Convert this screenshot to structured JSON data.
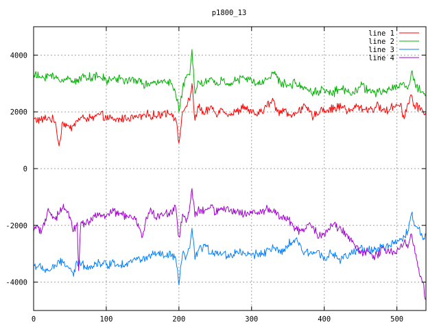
{
  "chart_data": {
    "type": "line",
    "title": "p1800_13",
    "xlabel": "",
    "ylabel": "",
    "xlim": [
      0,
      540
    ],
    "ylim": [
      -5000,
      5000
    ],
    "x_ticks": [
      0,
      100,
      200,
      300,
      400,
      500
    ],
    "y_ticks": [
      -4000,
      -2000,
      0,
      2000,
      4000
    ],
    "grid": true,
    "legend_position": "top-right",
    "series": [
      {
        "name": "line 1",
        "color": "#ff0000",
        "anchors": [
          [
            0,
            1750
          ],
          [
            10,
            1700
          ],
          [
            20,
            1800
          ],
          [
            30,
            1650
          ],
          [
            35,
            800
          ],
          [
            40,
            1650
          ],
          [
            50,
            1400
          ],
          [
            60,
            1700
          ],
          [
            70,
            1800
          ],
          [
            80,
            1750
          ],
          [
            90,
            1900
          ],
          [
            100,
            1800
          ],
          [
            110,
            1700
          ],
          [
            120,
            1750
          ],
          [
            130,
            1800
          ],
          [
            140,
            1800
          ],
          [
            150,
            1850
          ],
          [
            160,
            1900
          ],
          [
            170,
            1850
          ],
          [
            180,
            2000
          ],
          [
            190,
            1950
          ],
          [
            195,
            1800
          ],
          [
            200,
            900
          ],
          [
            205,
            2000
          ],
          [
            210,
            2200
          ],
          [
            215,
            2400
          ],
          [
            218,
            3000
          ],
          [
            222,
            1700
          ],
          [
            226,
            2200
          ],
          [
            235,
            1900
          ],
          [
            245,
            2200
          ],
          [
            250,
            1950
          ],
          [
            260,
            2100
          ],
          [
            270,
            1900
          ],
          [
            280,
            2000
          ],
          [
            290,
            2200
          ],
          [
            300,
            1950
          ],
          [
            310,
            1900
          ],
          [
            320,
            2200
          ],
          [
            330,
            2400
          ],
          [
            335,
            2000
          ],
          [
            345,
            2100
          ],
          [
            355,
            1800
          ],
          [
            365,
            2100
          ],
          [
            375,
            2150
          ],
          [
            385,
            1800
          ],
          [
            395,
            2100
          ],
          [
            405,
            2050
          ],
          [
            415,
            2150
          ],
          [
            425,
            2200
          ],
          [
            435,
            2000
          ],
          [
            445,
            2200
          ],
          [
            455,
            2100
          ],
          [
            465,
            2100
          ],
          [
            475,
            2200
          ],
          [
            485,
            2000
          ],
          [
            495,
            2200
          ],
          [
            505,
            2300
          ],
          [
            510,
            1750
          ],
          [
            515,
            2300
          ],
          [
            520,
            2600
          ],
          [
            525,
            2100
          ],
          [
            530,
            2200
          ],
          [
            535,
            2050
          ],
          [
            540,
            1900
          ]
        ]
      },
      {
        "name": "line 2",
        "color": "#00b000",
        "anchors": [
          [
            0,
            3300
          ],
          [
            10,
            3200
          ],
          [
            20,
            3300
          ],
          [
            30,
            3200
          ],
          [
            40,
            3100
          ],
          [
            50,
            3200
          ],
          [
            60,
            3050
          ],
          [
            70,
            3300
          ],
          [
            80,
            3200
          ],
          [
            90,
            3250
          ],
          [
            100,
            3100
          ],
          [
            110,
            3150
          ],
          [
            120,
            3200
          ],
          [
            130,
            3050
          ],
          [
            140,
            3150
          ],
          [
            150,
            3000
          ],
          [
            160,
            2950
          ],
          [
            170,
            3000
          ],
          [
            180,
            3150
          ],
          [
            190,
            3000
          ],
          [
            195,
            2700
          ],
          [
            200,
            2000
          ],
          [
            205,
            2800
          ],
          [
            210,
            3200
          ],
          [
            215,
            3300
          ],
          [
            218,
            4200
          ],
          [
            222,
            2650
          ],
          [
            226,
            3100
          ],
          [
            235,
            3000
          ],
          [
            245,
            3200
          ],
          [
            250,
            2950
          ],
          [
            260,
            3100
          ],
          [
            270,
            3000
          ],
          [
            280,
            3100
          ],
          [
            290,
            3200
          ],
          [
            300,
            3100
          ],
          [
            310,
            2950
          ],
          [
            320,
            3150
          ],
          [
            330,
            3400
          ],
          [
            340,
            3000
          ],
          [
            350,
            2950
          ],
          [
            360,
            3000
          ],
          [
            370,
            2900
          ],
          [
            380,
            2750
          ],
          [
            390,
            2700
          ],
          [
            400,
            2800
          ],
          [
            410,
            2650
          ],
          [
            420,
            2800
          ],
          [
            430,
            2750
          ],
          [
            440,
            2700
          ],
          [
            450,
            2900
          ],
          [
            460,
            2800
          ],
          [
            470,
            2650
          ],
          [
            480,
            2700
          ],
          [
            490,
            2800
          ],
          [
            500,
            2900
          ],
          [
            510,
            3000
          ],
          [
            515,
            2800
          ],
          [
            520,
            3400
          ],
          [
            525,
            3000
          ],
          [
            530,
            2800
          ],
          [
            535,
            2700
          ],
          [
            540,
            2600
          ]
        ]
      },
      {
        "name": "line 3",
        "color": "#0080ff",
        "anchors": [
          [
            0,
            -3400
          ],
          [
            10,
            -3500
          ],
          [
            20,
            -3600
          ],
          [
            30,
            -3400
          ],
          [
            40,
            -3300
          ],
          [
            50,
            -3500
          ],
          [
            55,
            -3800
          ],
          [
            60,
            -3300
          ],
          [
            70,
            -3400
          ],
          [
            80,
            -3450
          ],
          [
            90,
            -3300
          ],
          [
            100,
            -3400
          ],
          [
            110,
            -3300
          ],
          [
            120,
            -3400
          ],
          [
            130,
            -3300
          ],
          [
            140,
            -3200
          ],
          [
            150,
            -3200
          ],
          [
            160,
            -3100
          ],
          [
            170,
            -3000
          ],
          [
            180,
            -3100
          ],
          [
            190,
            -3050
          ],
          [
            195,
            -3100
          ],
          [
            200,
            -4100
          ],
          [
            205,
            -3000
          ],
          [
            210,
            -3100
          ],
          [
            215,
            -2800
          ],
          [
            218,
            -2100
          ],
          [
            222,
            -3200
          ],
          [
            226,
            -2900
          ],
          [
            235,
            -2700
          ],
          [
            245,
            -3000
          ],
          [
            250,
            -2900
          ],
          [
            260,
            -3000
          ],
          [
            270,
            -3100
          ],
          [
            280,
            -2900
          ],
          [
            290,
            -3000
          ],
          [
            300,
            -3050
          ],
          [
            310,
            -3000
          ],
          [
            320,
            -2900
          ],
          [
            330,
            -2800
          ],
          [
            340,
            -3000
          ],
          [
            350,
            -2700
          ],
          [
            360,
            -2500
          ],
          [
            370,
            -2900
          ],
          [
            380,
            -3000
          ],
          [
            390,
            -2900
          ],
          [
            400,
            -3100
          ],
          [
            410,
            -3000
          ],
          [
            420,
            -3200
          ],
          [
            430,
            -3100
          ],
          [
            440,
            -3000
          ],
          [
            450,
            -2800
          ],
          [
            460,
            -2900
          ],
          [
            470,
            -2850
          ],
          [
            480,
            -2800
          ],
          [
            490,
            -2700
          ],
          [
            500,
            -2600
          ],
          [
            505,
            -2500
          ],
          [
            510,
            -2400
          ],
          [
            515,
            -2200
          ],
          [
            520,
            -1600
          ],
          [
            525,
            -2000
          ],
          [
            530,
            -2100
          ],
          [
            535,
            -2400
          ],
          [
            540,
            -2350
          ]
        ]
      },
      {
        "name": "line 4",
        "color": "#a000d0",
        "anchors": [
          [
            0,
            -2200
          ],
          [
            5,
            -2000
          ],
          [
            10,
            -2300
          ],
          [
            15,
            -2000
          ],
          [
            20,
            -1400
          ],
          [
            25,
            -1600
          ],
          [
            30,
            -1800
          ],
          [
            40,
            -1400
          ],
          [
            50,
            -1700
          ],
          [
            55,
            -2200
          ],
          [
            60,
            -1900
          ],
          [
            62,
            -3600
          ],
          [
            65,
            -1900
          ],
          [
            70,
            -1900
          ],
          [
            80,
            -1800
          ],
          [
            90,
            -1600
          ],
          [
            100,
            -1700
          ],
          [
            110,
            -1500
          ],
          [
            120,
            -1600
          ],
          [
            130,
            -1700
          ],
          [
            140,
            -1800
          ],
          [
            150,
            -2400
          ],
          [
            155,
            -1700
          ],
          [
            160,
            -1500
          ],
          [
            170,
            -1700
          ],
          [
            180,
            -1600
          ],
          [
            190,
            -1600
          ],
          [
            195,
            -1300
          ],
          [
            200,
            -2400
          ],
          [
            205,
            -1600
          ],
          [
            210,
            -1900
          ],
          [
            215,
            -1300
          ],
          [
            218,
            -700
          ],
          [
            222,
            -1700
          ],
          [
            226,
            -1500
          ],
          [
            235,
            -1500
          ],
          [
            245,
            -1300
          ],
          [
            250,
            -1600
          ],
          [
            260,
            -1400
          ],
          [
            270,
            -1500
          ],
          [
            280,
            -1500
          ],
          [
            290,
            -1600
          ],
          [
            300,
            -1500
          ],
          [
            310,
            -1600
          ],
          [
            320,
            -1400
          ],
          [
            330,
            -1500
          ],
          [
            340,
            -1700
          ],
          [
            350,
            -1800
          ],
          [
            360,
            -2100
          ],
          [
            370,
            -2200
          ],
          [
            380,
            -1900
          ],
          [
            390,
            -2300
          ],
          [
            400,
            -2300
          ],
          [
            410,
            -2000
          ],
          [
            420,
            -2100
          ],
          [
            430,
            -2300
          ],
          [
            440,
            -2600
          ],
          [
            450,
            -3000
          ],
          [
            460,
            -2900
          ],
          [
            470,
            -3100
          ],
          [
            480,
            -2800
          ],
          [
            490,
            -3000
          ],
          [
            500,
            -2900
          ],
          [
            505,
            -2700
          ],
          [
            510,
            -2600
          ],
          [
            515,
            -2800
          ],
          [
            520,
            -2300
          ],
          [
            525,
            -3000
          ],
          [
            530,
            -3500
          ],
          [
            535,
            -4000
          ],
          [
            540,
            -4600
          ]
        ]
      }
    ]
  }
}
